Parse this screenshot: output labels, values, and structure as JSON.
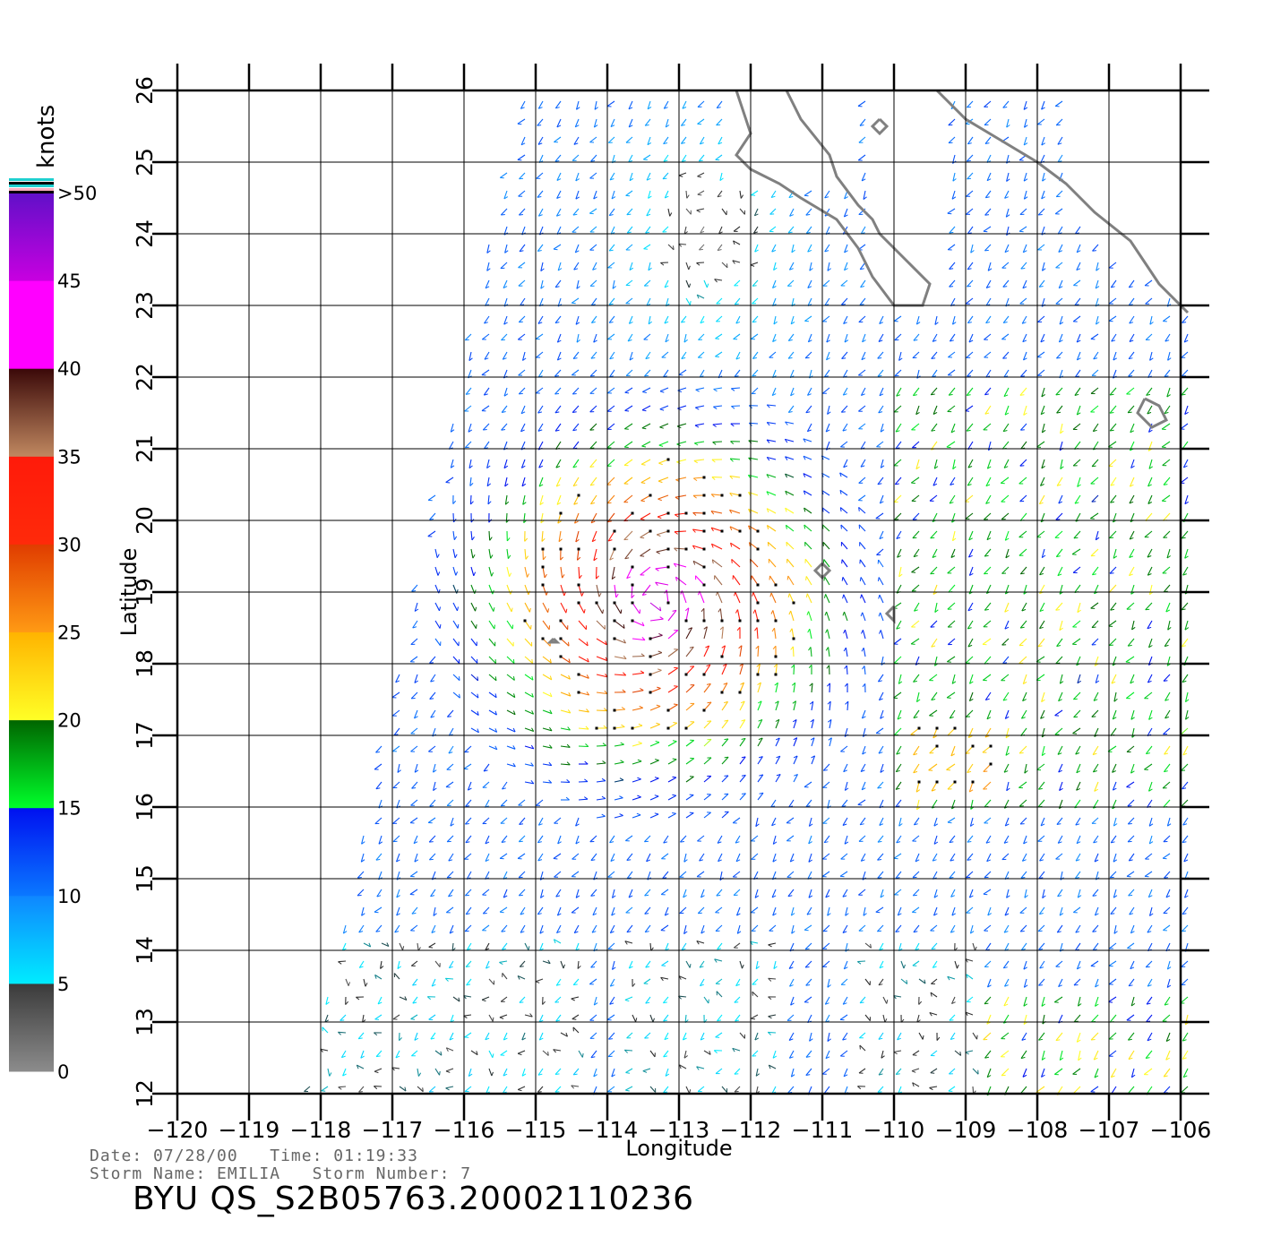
{
  "chart_data": {
    "type": "wind-vector-map",
    "xlabel": "Longitude",
    "ylabel": "Latitude",
    "xlim": [
      -120,
      -106
    ],
    "ylim": [
      12,
      26
    ],
    "x_ticks": [
      "-120",
      "-119",
      "-118",
      "-117",
      "-116",
      "-115",
      "-114",
      "-113",
      "-112",
      "-111",
      "-110",
      "-109",
      "-108",
      "-107",
      "-106"
    ],
    "y_ticks": [
      "12",
      "13",
      "14",
      "15",
      "16",
      "17",
      "18",
      "19",
      "20",
      "21",
      "22",
      "23",
      "24",
      "25",
      "26"
    ],
    "grid": true,
    "colorbar": {
      "title": "knots",
      "labels": [
        "0",
        "5",
        "10",
        "15",
        "20",
        "25",
        "30",
        "35",
        "40",
        "45",
        ">50"
      ],
      "bands": [
        {
          "from": 0,
          "to": 5,
          "top": "#3a3a3a",
          "bottom": "#8c8c8c"
        },
        {
          "from": 5,
          "to": 10,
          "top": "#0f86ff",
          "bottom": "#00ecff"
        },
        {
          "from": 10,
          "to": 15,
          "top": "#0010f0",
          "bottom": "#0a78ff"
        },
        {
          "from": 15,
          "to": 20,
          "top": "#006400",
          "bottom": "#00ff2a"
        },
        {
          "from": 20,
          "to": 25,
          "top": "#ffb300",
          "bottom": "#ffff26"
        },
        {
          "from": 25,
          "to": 30,
          "top": "#e03c00",
          "bottom": "#ff9a14"
        },
        {
          "from": 30,
          "to": 35,
          "top": "#ff1a0a",
          "bottom": "#ff2a0a"
        },
        {
          "from": 35,
          "to": 40,
          "top": "#3a0808",
          "bottom": "#c08860"
        },
        {
          "from": 40,
          "to": 45,
          "top": "#ff00ff",
          "bottom": "#ff00ff"
        },
        {
          "from": 45,
          "to": 50,
          "top": "#6010c8",
          "bottom": "#c800e0"
        }
      ]
    },
    "storm_center": {
      "lon": -113.3,
      "lat": 18.9
    },
    "swath_left_edge": [
      [
        -118.2,
        12
      ],
      [
        -115.2,
        26
      ]
    ]
  },
  "footer": {
    "date_time": "Date: 07/28/00   Time: 01:19:33",
    "storm": "Storm Name: EMILIA   Storm Number: 7",
    "file_id": "BYU QS_S2B05763.20002110236"
  }
}
